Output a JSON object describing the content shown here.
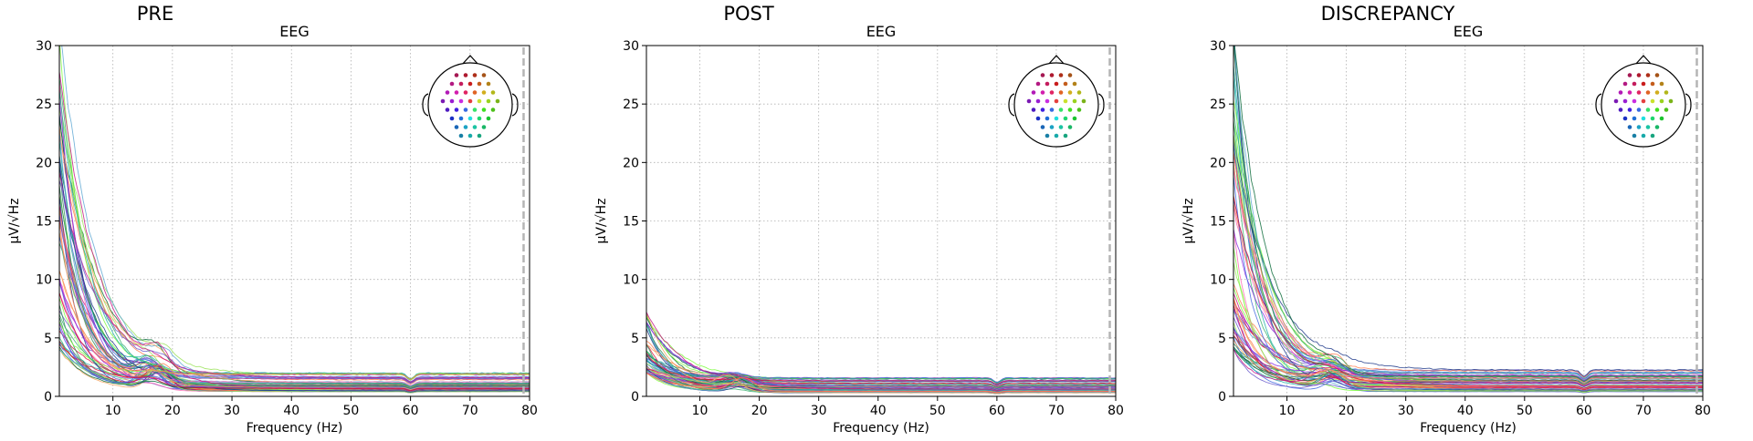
{
  "figure": {
    "panels": [
      {
        "suptitle": "PRE",
        "title": "EEG"
      },
      {
        "suptitle": "POST",
        "title": "EEG"
      },
      {
        "suptitle": "DISCREPANCY",
        "title": "EEG"
      }
    ],
    "xlabel": "Frequency (Hz)",
    "ylabel": "µV/√Hz"
  },
  "chart_data": [
    {
      "type": "line",
      "title": "EEG",
      "suptitle": "PRE",
      "xlabel": "Frequency (Hz)",
      "ylabel": "µV/√Hz",
      "xlim": [
        1,
        80
      ],
      "ylim": [
        0,
        30
      ],
      "xticks": [
        10,
        20,
        30,
        40,
        50,
        60,
        70,
        80
      ],
      "yticks": [
        0,
        5,
        10,
        15,
        20,
        25,
        30
      ],
      "grid": true,
      "legend": "sensor-layout inset, top-right",
      "lowpass_marker_hz": 79,
      "n_channels": 60,
      "series_summary": {
        "peak_at_1hz_range": [
          4,
          32
        ],
        "alpha_peak_hz": 17,
        "alpha_peak_level": 3.5,
        "plateau_level_range": [
          0.4,
          2.4
        ],
        "notch_hz": 60
      }
    },
    {
      "type": "line",
      "title": "EEG",
      "suptitle": "POST",
      "xlabel": "Frequency (Hz)",
      "ylabel": "µV/√Hz",
      "xlim": [
        1,
        80
      ],
      "ylim": [
        0,
        30
      ],
      "xticks": [
        10,
        20,
        30,
        40,
        50,
        60,
        70,
        80
      ],
      "yticks": [
        0,
        5,
        10,
        15,
        20,
        25,
        30
      ],
      "grid": true,
      "legend": "sensor-layout inset, top-right",
      "lowpass_marker_hz": 79,
      "n_channels": 60,
      "series_summary": {
        "peak_at_1hz_range": [
          2,
          7.5
        ],
        "alpha_peak_hz": 16,
        "alpha_peak_level": 2.2,
        "plateau_level_range": [
          0.3,
          1.6
        ],
        "notch_hz": 60
      }
    },
    {
      "type": "line",
      "title": "EEG",
      "suptitle": "DISCREPANCY",
      "xlabel": "Frequency (Hz)",
      "ylabel": "µV/√Hz",
      "xlim": [
        1,
        80
      ],
      "ylim": [
        0,
        30
      ],
      "xticks": [
        10,
        20,
        30,
        40,
        50,
        60,
        70,
        80
      ],
      "yticks": [
        0,
        5,
        10,
        15,
        20,
        25,
        30
      ],
      "grid": true,
      "legend": "sensor-layout inset, top-right",
      "lowpass_marker_hz": 79,
      "n_channels": 60,
      "series_summary": {
        "peak_at_1hz_range": [
          4,
          32
        ],
        "alpha_peak_hz": 17,
        "alpha_peak_level": 3.0,
        "plateau_level_range": [
          0.4,
          2.3
        ],
        "notch_hz": 60
      }
    }
  ],
  "colors": {
    "palette": [
      "#7cfc3c",
      "#9be35a",
      "#3cb371",
      "#2e8b57",
      "#5fa8d3",
      "#4169e1",
      "#6a5acd",
      "#8a2be2",
      "#c71585",
      "#dc143c",
      "#ff7f50",
      "#f4a460",
      "#20b2aa",
      "#1e3a8a",
      "#0b6b3a",
      "#ff69b4"
    ],
    "grid": "#b0b0b0",
    "marker": "#b5b5b5"
  }
}
